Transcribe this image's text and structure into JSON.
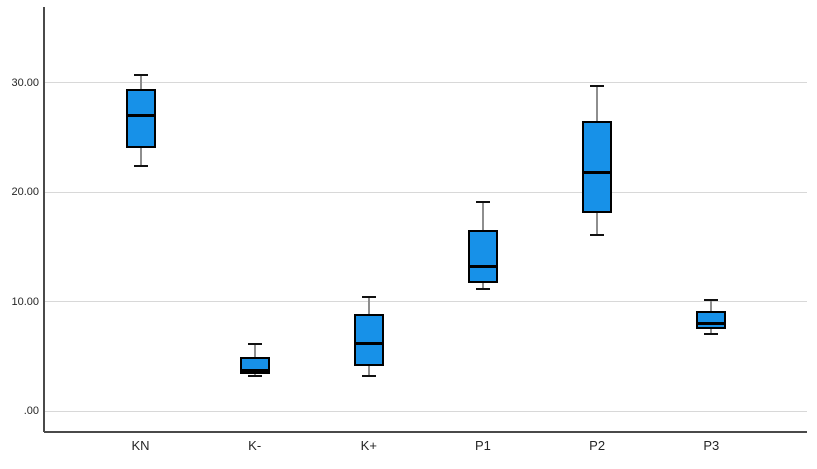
{
  "chart_data": {
    "type": "boxplot",
    "title": "",
    "xlabel": "",
    "ylabel": "",
    "categories": [
      "KN",
      "K-",
      "K+",
      "P1",
      "P2",
      "P3"
    ],
    "boxes": [
      {
        "category": "KN",
        "min": 22.4,
        "q1": 24.0,
        "median": 27.0,
        "q3": 29.4,
        "max": 30.7
      },
      {
        "category": "K-",
        "min": 3.2,
        "q1": 3.4,
        "median": 3.7,
        "q3": 4.9,
        "max": 6.1
      },
      {
        "category": "K+",
        "min": 3.2,
        "q1": 4.1,
        "median": 6.2,
        "q3": 8.9,
        "max": 10.4
      },
      {
        "category": "P1",
        "min": 11.1,
        "q1": 11.7,
        "median": 13.2,
        "q3": 16.5,
        "max": 19.1
      },
      {
        "category": "P2",
        "min": 16.1,
        "q1": 18.1,
        "median": 21.8,
        "q3": 26.5,
        "max": 29.7
      },
      {
        "category": "P3",
        "min": 7.0,
        "q1": 7.5,
        "median": 8.0,
        "q3": 9.1,
        "max": 10.1
      }
    ],
    "y_ticks": [
      {
        "label": ".00",
        "value": 0
      },
      {
        "label": "10.00",
        "value": 10
      },
      {
        "label": "20.00",
        "value": 20
      },
      {
        "label": "30.00",
        "value": 30
      }
    ],
    "ylim": [
      -1.9,
      36.9
    ],
    "grid": "horizontal",
    "legend": "none",
    "colors": {
      "box_fill": "#1791e8",
      "box_border": "#000000",
      "median": "#000000",
      "whisker_stem": "#8e8e8e",
      "whisker_cap": "#111111",
      "gridline": "#d8d8d8",
      "axis": "#4a4a4a",
      "label_text": "#262626",
      "background": "#ffffff"
    }
  }
}
